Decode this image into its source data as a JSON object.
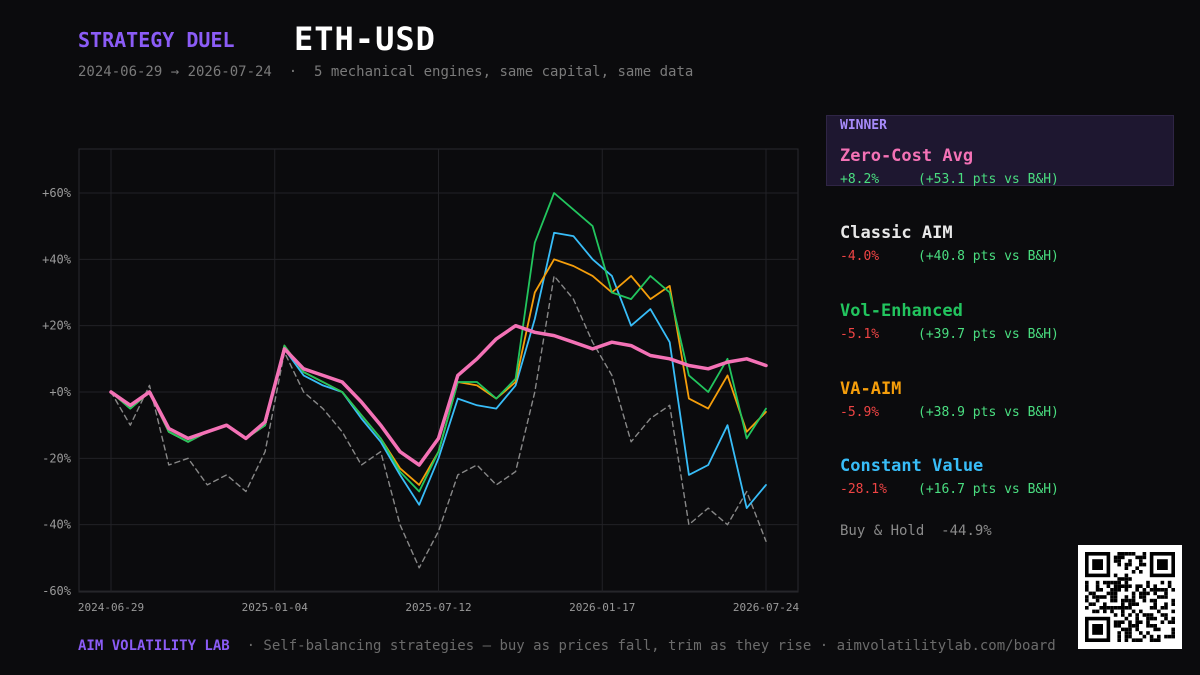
{
  "header": {
    "kicker": "STRATEGY DUEL",
    "ticker": "ETH-USD",
    "date_range": "2024-06-29 → 2026-07-24",
    "description": "5 mechanical engines, same capital, same data"
  },
  "panel": {
    "winner_label": "WINNER",
    "strategies": [
      {
        "name": "Zero-Cost Avg",
        "return": "+8.2%",
        "vs_bh": "(+53.1 pts vs B&H)",
        "color": "#f472b6",
        "return_color": "#4ade80"
      },
      {
        "name": "Classic AIM",
        "return": "-4.0%",
        "vs_bh": "(+40.8 pts vs B&H)",
        "color": "#e8e8e8",
        "return_color": "#ef4444"
      },
      {
        "name": "Vol-Enhanced",
        "return": "-5.1%",
        "vs_bh": "(+39.7 pts vs B&H)",
        "color": "#22c55e",
        "return_color": "#ef4444"
      },
      {
        "name": "VA-AIM",
        "return": "-5.9%",
        "vs_bh": "(+38.9 pts vs B&H)",
        "color": "#f59e0b",
        "return_color": "#ef4444"
      },
      {
        "name": "Constant Value",
        "return": "-28.1%",
        "vs_bh": "(+16.7 pts vs B&H)",
        "color": "#38bdf8",
        "return_color": "#ef4444"
      }
    ],
    "buy_hold_label": "Buy & Hold",
    "buy_hold_value": "-44.9%"
  },
  "footer": {
    "brand": "AIM VOLATILITY LAB",
    "tagline": "· Self-balancing strategies — buy as prices fall, trim as they rise · aimvolatilitylab.com/board"
  },
  "chart_data": {
    "type": "line",
    "x_ticks": [
      "2024-06-29",
      "2025-01-04",
      "2025-07-12",
      "2026-01-17",
      "2026-07-24"
    ],
    "y_ticks": [
      "+60%",
      "+40%",
      "+20%",
      "+0%",
      "-20%",
      "-40%",
      "-60%"
    ],
    "ylim": [
      -60,
      72
    ],
    "grid": true,
    "x_periods": [
      "2024-06-29",
      "2024-07-21",
      "2024-08-12",
      "2024-09-03",
      "2024-09-25",
      "2024-10-17",
      "2024-11-08",
      "2024-11-30",
      "2024-12-22",
      "2025-01-13",
      "2025-02-04",
      "2025-02-26",
      "2025-03-20",
      "2025-04-11",
      "2025-05-03",
      "2025-05-25",
      "2025-06-16",
      "2025-07-08",
      "2025-07-30",
      "2025-08-21",
      "2025-09-12",
      "2025-10-04",
      "2025-10-26",
      "2025-11-17",
      "2025-12-09",
      "2025-12-31",
      "2026-01-22",
      "2026-02-13",
      "2026-03-07",
      "2026-03-29",
      "2026-04-20",
      "2026-05-12",
      "2026-06-03",
      "2026-06-25",
      "2026-07-24"
    ],
    "series": [
      {
        "name": "Buy & Hold",
        "color": "#888888",
        "dashed": true,
        "values": [
          0,
          -10,
          2,
          -22,
          -20,
          -28,
          -25,
          -30,
          -18,
          12,
          0,
          -5,
          -12,
          -22,
          -18,
          -40,
          -53,
          -42,
          -25,
          -22,
          -28,
          -24,
          0,
          35,
          28,
          15,
          5,
          -15,
          -8,
          -4,
          -40,
          -35,
          -40,
          -30,
          -45
        ]
      },
      {
        "name": "Constant Value",
        "color": "#38bdf8",
        "dashed": false,
        "values": [
          0,
          -5,
          0,
          -12,
          -15,
          -12,
          -10,
          -14,
          -10,
          13,
          5,
          2,
          0,
          -8,
          -15,
          -25,
          -34,
          -20,
          -2,
          -4,
          -5,
          2,
          22,
          48,
          47,
          40,
          35,
          20,
          25,
          15,
          -25,
          -22,
          -10,
          -35,
          -28
        ]
      },
      {
        "name": "VA-AIM",
        "color": "#f59e0b",
        "dashed": false,
        "values": [
          0,
          -5,
          0,
          -12,
          -15,
          -12,
          -10,
          -14,
          -10,
          14,
          6,
          3,
          0,
          -7,
          -14,
          -23,
          -28,
          -18,
          3,
          2,
          -2,
          3,
          30,
          40,
          38,
          35,
          30,
          35,
          28,
          32,
          -2,
          -5,
          5,
          -12,
          -6
        ]
      },
      {
        "name": "Vol-Enhanced",
        "color": "#22c55e",
        "dashed": false,
        "values": [
          0,
          -5,
          0,
          -12,
          -15,
          -12,
          -10,
          -14,
          -10,
          14,
          6,
          3,
          0,
          -7,
          -14,
          -24,
          -30,
          -18,
          3,
          3,
          -2,
          4,
          45,
          60,
          55,
          50,
          30,
          28,
          35,
          30,
          5,
          0,
          10,
          -14,
          -5
        ]
      },
      {
        "name": "Zero-Cost Avg",
        "color": "#f472b6",
        "dashed": false,
        "values": [
          0,
          -4,
          0,
          -11,
          -14,
          -12,
          -10,
          -14,
          -9,
          13,
          7,
          5,
          3,
          -3,
          -10,
          -18,
          -22,
          -14,
          5,
          10,
          16,
          20,
          18,
          17,
          15,
          13,
          15,
          14,
          11,
          10,
          8,
          7,
          9,
          10,
          8
        ]
      }
    ]
  }
}
